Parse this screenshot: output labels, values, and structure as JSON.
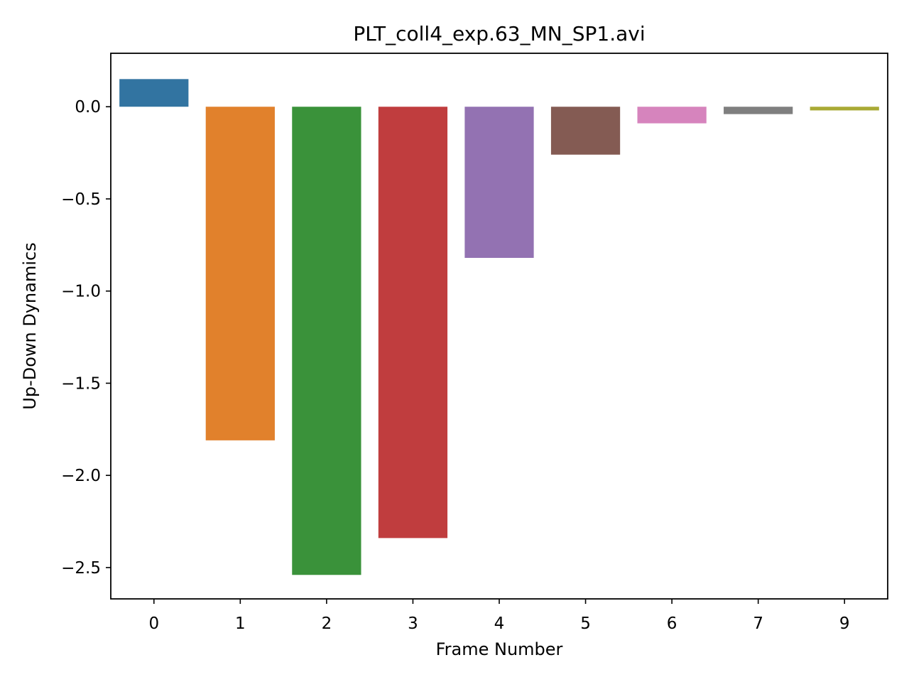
{
  "chart_data": {
    "type": "bar",
    "title": "PLT_coll4_exp.63_MN_SP1.avi",
    "xlabel": "Frame Number",
    "ylabel": "Up-Down Dynamics",
    "categories": [
      "0",
      "1",
      "2",
      "3",
      "4",
      "5",
      "6",
      "7",
      "9"
    ],
    "values": [
      0.15,
      -1.81,
      -2.54,
      -2.34,
      -0.82,
      -0.26,
      -0.09,
      -0.04,
      -0.02
    ],
    "colors": [
      "#3274a1",
      "#e1812c",
      "#3a923a",
      "#c03d3e",
      "#9372b2",
      "#845b53",
      "#d684bd",
      "#7f7f7f",
      "#a9aa35"
    ],
    "yticks": [
      0.0,
      -0.5,
      -1.0,
      -1.5,
      -2.0,
      -2.5
    ],
    "ytick_labels": [
      "0.0",
      "−0.5",
      "−1.0",
      "−1.5",
      "−2.0",
      "−2.5"
    ],
    "ylim": [
      -2.67,
      0.29
    ],
    "grid": false,
    "legend": false
  }
}
